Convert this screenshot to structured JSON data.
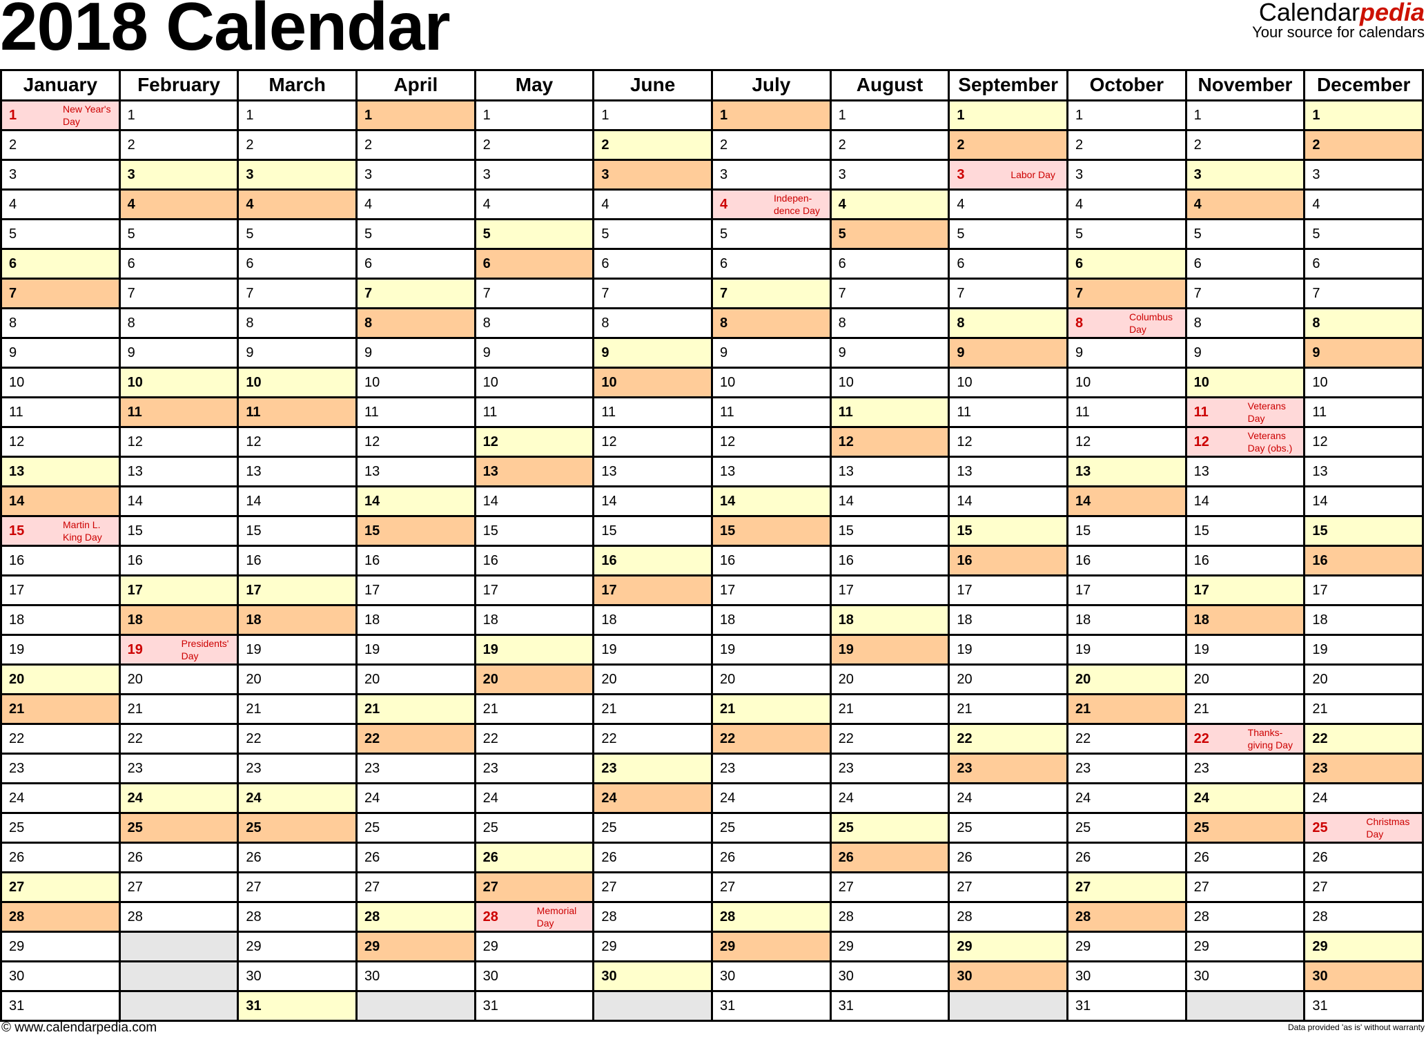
{
  "title": "2018 Calendar",
  "logo": {
    "brand_plain": "Calendar",
    "brand_accent": "pedia",
    "tagline": "Your source for calendars"
  },
  "footer": {
    "left": "© www.calendarpedia.com",
    "right": "Data provided 'as is' without warranty"
  },
  "colors": {
    "saturday": "#ffffcc",
    "sunday": "#ffcc99",
    "holiday": "#ffd9d9",
    "holiday_text": "#cc0000",
    "empty": "#e6e6e6"
  },
  "months": [
    {
      "name": "January",
      "days": [
        "1 Mo",
        "2 Tu",
        "3 We",
        "4 Th",
        "5 Fr",
        "6 Sa",
        "7 Su",
        "8 Mo",
        "9 Tu",
        "10 We",
        "11 Th",
        "12 Fr",
        "13 Sa",
        "14 Su",
        "15 Mo",
        "16 Tu",
        "17 We",
        "18 Th",
        "19 Fr",
        "20 Sa",
        "21 Su",
        "22 Mo",
        "23 Tu",
        "24 We",
        "25 Th",
        "26 Fr",
        "27 Sa",
        "28 Su",
        "29 Mo",
        "30 Tu",
        "31 We"
      ]
    },
    {
      "name": "February",
      "days": [
        "1 Th",
        "2 Fr",
        "3 Sa",
        "4 Su",
        "5 Mo",
        "6 Tu",
        "7 We",
        "8 Th",
        "9 Fr",
        "10 Sa",
        "11 Su",
        "12 Mo",
        "13 Tu",
        "14 We",
        "15 Th",
        "16 Fr",
        "17 Sa",
        "18 Su",
        "19 Mo",
        "20 Tu",
        "21 We",
        "22 Th",
        "23 Fr",
        "24 Sa",
        "25 Su",
        "26 Mo",
        "27 Tu",
        "28 We"
      ]
    },
    {
      "name": "March",
      "days": [
        "1 Th",
        "2 Fr",
        "3 Sa",
        "4 Su",
        "5 Mo",
        "6 Tu",
        "7 We",
        "8 Th",
        "9 Fr",
        "10 Sa",
        "11 Su",
        "12 Mo",
        "13 Tu",
        "14 We",
        "15 Th",
        "16 Fr",
        "17 Sa",
        "18 Su",
        "19 Mo",
        "20 Tu",
        "21 We",
        "22 Th",
        "23 Fr",
        "24 Sa",
        "25 Su",
        "26 Mo",
        "27 Tu",
        "28 We",
        "29 Th",
        "30 Fr",
        "31 Sa"
      ]
    },
    {
      "name": "April",
      "days": [
        "1 Su",
        "2 Mo",
        "3 Tu",
        "4 We",
        "5 Th",
        "6 Fr",
        "7 Sa",
        "8 Su",
        "9 Mo",
        "10 Tu",
        "11 We",
        "12 Th",
        "13 Fr",
        "14 Sa",
        "15 Su",
        "16 Mo",
        "17 Tu",
        "18 We",
        "19 Th",
        "20 Fr",
        "21 Sa",
        "22 Su",
        "23 Mo",
        "24 Tu",
        "25 We",
        "26 Th",
        "27 Fr",
        "28 Sa",
        "29 Su",
        "30 Mo"
      ]
    },
    {
      "name": "May",
      "days": [
        "1 Tu",
        "2 We",
        "3 Th",
        "4 Fr",
        "5 Sa",
        "6 Su",
        "7 Mo",
        "8 Tu",
        "9 We",
        "10 Th",
        "11 Fr",
        "12 Sa",
        "13 Su",
        "14 Mo",
        "15 Tu",
        "16 We",
        "17 Th",
        "18 Fr",
        "19 Sa",
        "20 Su",
        "21 Mo",
        "22 Tu",
        "23 We",
        "24 Th",
        "25 Fr",
        "26 Sa",
        "27 Su",
        "28 Mo",
        "29 Tu",
        "30 We",
        "31 Th"
      ]
    },
    {
      "name": "June",
      "days": [
        "1 Fr",
        "2 Sa",
        "3 Su",
        "4 Mo",
        "5 Tu",
        "6 We",
        "7 Th",
        "8 Fr",
        "9 Sa",
        "10 Su",
        "11 Mo",
        "12 Tu",
        "13 We",
        "14 Th",
        "15 Fr",
        "16 Sa",
        "17 Su",
        "18 Mo",
        "19 Tu",
        "20 We",
        "21 Th",
        "22 Fr",
        "23 Sa",
        "24 Su",
        "25 Mo",
        "26 Tu",
        "27 We",
        "28 Th",
        "29 Fr",
        "30 Sa"
      ]
    },
    {
      "name": "July",
      "days": [
        "1 Su",
        "2 Mo",
        "3 Tu",
        "4 We",
        "5 Th",
        "6 Fr",
        "7 Sa",
        "8 Su",
        "9 Mo",
        "10 Tu",
        "11 We",
        "12 Th",
        "13 Fr",
        "14 Sa",
        "15 Su",
        "16 Mo",
        "17 Tu",
        "18 We",
        "19 Th",
        "20 Fr",
        "21 Sa",
        "22 Su",
        "23 Mo",
        "24 Tu",
        "25 We",
        "26 Th",
        "27 Fr",
        "28 Sa",
        "29 Su",
        "30 Mo",
        "31 Tu"
      ]
    },
    {
      "name": "August",
      "days": [
        "1 We",
        "2 Th",
        "3 Fr",
        "4 Sa",
        "5 Su",
        "6 Mo",
        "7 Tu",
        "8 We",
        "9 Th",
        "10 Fr",
        "11 Sa",
        "12 Su",
        "13 Mo",
        "14 Tu",
        "15 We",
        "16 Th",
        "17 Fr",
        "18 Sa",
        "19 Su",
        "20 Mo",
        "21 Tu",
        "22 We",
        "23 Th",
        "24 Fr",
        "25 Sa",
        "26 Su",
        "27 Mo",
        "28 Tu",
        "29 We",
        "30 Th",
        "31 Fr"
      ]
    },
    {
      "name": "September",
      "days": [
        "1 Sa",
        "2 Su",
        "3 Mo",
        "4 Tu",
        "5 We",
        "6 Th",
        "7 Fr",
        "8 Sa",
        "9 Su",
        "10 Mo",
        "11 Tu",
        "12 We",
        "13 Th",
        "14 Fr",
        "15 Sa",
        "16 Su",
        "17 Mo",
        "18 Tu",
        "19 We",
        "20 Th",
        "21 Fr",
        "22 Sa",
        "23 Su",
        "24 Mo",
        "25 Tu",
        "26 We",
        "27 Th",
        "28 Fr",
        "29 Sa",
        "30 Su"
      ]
    },
    {
      "name": "October",
      "days": [
        "1 Mo",
        "2 Tu",
        "3 We",
        "4 Th",
        "5 Fr",
        "6 Sa",
        "7 Su",
        "8 Mo",
        "9 Tu",
        "10 We",
        "11 Th",
        "12 Fr",
        "13 Sa",
        "14 Su",
        "15 Mo",
        "16 Tu",
        "17 We",
        "18 Th",
        "19 Fr",
        "20 Sa",
        "21 Su",
        "22 Mo",
        "23 Tu",
        "24 We",
        "25 Th",
        "26 Fr",
        "27 Sa",
        "28 Su",
        "29 Mo",
        "30 Tu",
        "31 We"
      ]
    },
    {
      "name": "November",
      "days": [
        "1 Th",
        "2 Fr",
        "3 Sa",
        "4 Su",
        "5 Mo",
        "6 Tu",
        "7 We",
        "8 Th",
        "9 Fr",
        "10 Sa",
        "11 Su",
        "12 Mo",
        "13 Tu",
        "14 We",
        "15 Th",
        "16 Fr",
        "17 Sa",
        "18 Su",
        "19 Mo",
        "20 Tu",
        "21 We",
        "22 Th",
        "23 Fr",
        "24 Sa",
        "25 Su",
        "26 Mo",
        "27 Tu",
        "28 We",
        "29 Th",
        "30 Fr"
      ]
    },
    {
      "name": "December",
      "days": [
        "1 Sa",
        "2 Su",
        "3 Mo",
        "4 Tu",
        "5 We",
        "6 Th",
        "7 Fr",
        "8 Sa",
        "9 Su",
        "10 Mo",
        "11 Tu",
        "12 We",
        "13 Th",
        "14 Fr",
        "15 Sa",
        "16 Su",
        "17 Mo",
        "18 Tu",
        "19 We",
        "20 Th",
        "21 Fr",
        "22 Sa",
        "23 Su",
        "24 Mo",
        "25 Tu",
        "26 We",
        "27 Th",
        "28 Fr",
        "29 Sa",
        "30 Su",
        "31 Mo"
      ]
    }
  ],
  "holidays": [
    {
      "month": "January",
      "day": 1,
      "lines": [
        "New Year's",
        "Day"
      ]
    },
    {
      "month": "January",
      "day": 15,
      "lines": [
        "Martin L.",
        "King Day"
      ]
    },
    {
      "month": "February",
      "day": 19,
      "lines": [
        "Presidents'",
        "Day"
      ]
    },
    {
      "month": "May",
      "day": 28,
      "lines": [
        "Memorial",
        "Day"
      ]
    },
    {
      "month": "July",
      "day": 4,
      "lines": [
        "Indepen-",
        "dence Day"
      ]
    },
    {
      "month": "September",
      "day": 3,
      "lines": [
        "Labor Day"
      ]
    },
    {
      "month": "October",
      "day": 8,
      "lines": [
        "Columbus",
        "Day"
      ]
    },
    {
      "month": "November",
      "day": 11,
      "lines": [
        "Veterans",
        "Day"
      ]
    },
    {
      "month": "November",
      "day": 12,
      "lines": [
        "Veterans",
        "Day (obs.)"
      ]
    },
    {
      "month": "November",
      "day": 22,
      "lines": [
        "Thanks-",
        "giving Day"
      ]
    },
    {
      "month": "December",
      "day": 25,
      "lines": [
        "Christmas",
        "Day"
      ]
    }
  ]
}
